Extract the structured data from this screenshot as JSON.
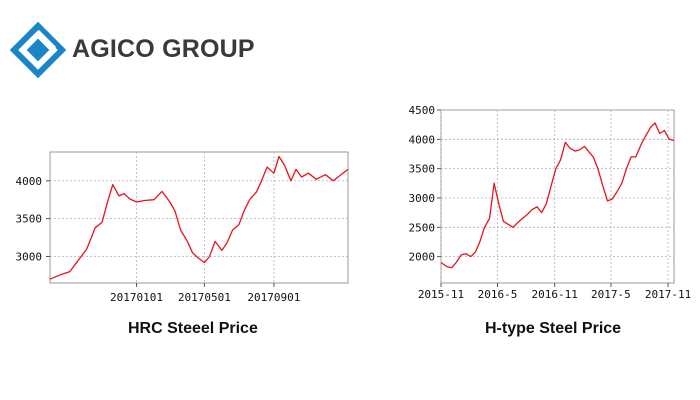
{
  "brand": {
    "name": "AGICO GROUP",
    "logo_icon": "agico-diamond-logo-icon",
    "color": "#1a86c8"
  },
  "chart_data": [
    {
      "type": "line",
      "title": "HRC Steeel Price",
      "xlabel": "",
      "ylabel": "",
      "x_ticks": [
        "20170101",
        "20170501",
        "20170901"
      ],
      "y_ticks": [
        3000,
        3500,
        4000
      ],
      "xlim": [
        "2016-08-01",
        "2018-01-10"
      ],
      "ylim": [
        2650,
        4380
      ],
      "grid": true,
      "series": [
        {
          "color": "#e8141c",
          "x": [
            "2016-08-01",
            "2016-08-20",
            "2016-09-05",
            "2016-09-20",
            "2016-10-05",
            "2016-10-20",
            "2016-11-01",
            "2016-11-10",
            "2016-11-20",
            "2016-12-01",
            "2016-12-10",
            "2016-12-20",
            "2017-01-01",
            "2017-01-15",
            "2017-02-01",
            "2017-02-15",
            "2017-03-01",
            "2017-03-10",
            "2017-03-20",
            "2017-04-01",
            "2017-04-10",
            "2017-04-20",
            "2017-05-01",
            "2017-05-10",
            "2017-05-20",
            "2017-06-01",
            "2017-06-10",
            "2017-06-20",
            "2017-07-01",
            "2017-07-10",
            "2017-07-20",
            "2017-08-01",
            "2017-08-10",
            "2017-08-20",
            "2017-09-01",
            "2017-09-10",
            "2017-09-20",
            "2017-10-01",
            "2017-10-10",
            "2017-10-20",
            "2017-11-01",
            "2017-11-15",
            "2017-12-01",
            "2017-12-15",
            "2018-01-01",
            "2018-01-10"
          ],
          "values": [
            2700,
            2760,
            2800,
            2950,
            3100,
            3380,
            3450,
            3700,
            3950,
            3800,
            3830,
            3760,
            3720,
            3740,
            3750,
            3860,
            3720,
            3600,
            3350,
            3200,
            3050,
            2980,
            2920,
            3000,
            3200,
            3080,
            3180,
            3350,
            3420,
            3600,
            3750,
            3850,
            4000,
            4180,
            4100,
            4320,
            4200,
            4000,
            4150,
            4050,
            4100,
            4020,
            4080,
            4000,
            4100,
            4150
          ]
        }
      ]
    },
    {
      "type": "line",
      "title": "H-type Steel Price",
      "xlabel": "",
      "ylabel": "",
      "x_ticks": [
        "2015-11",
        "2016-5",
        "2016-11",
        "2017-5",
        "2017-11"
      ],
      "y_ticks": [
        2000,
        2500,
        3000,
        3500,
        4000,
        4500
      ],
      "xlim": [
        "2015-11-01",
        "2017-11-20"
      ],
      "ylim": [
        1550,
        4500
      ],
      "grid": true,
      "series": [
        {
          "color": "#e8141c",
          "x": [
            "2015-11-01",
            "2015-11-20",
            "2015-12-05",
            "2015-12-20",
            "2016-01-05",
            "2016-01-20",
            "2016-02-05",
            "2016-02-20",
            "2016-03-05",
            "2016-03-20",
            "2016-04-05",
            "2016-04-20",
            "2016-05-05",
            "2016-05-20",
            "2016-06-05",
            "2016-06-20",
            "2016-07-05",
            "2016-07-20",
            "2016-08-05",
            "2016-08-20",
            "2016-09-05",
            "2016-09-20",
            "2016-10-05",
            "2016-10-20",
            "2016-11-05",
            "2016-11-20",
            "2016-12-05",
            "2016-12-20",
            "2017-01-05",
            "2017-01-20",
            "2017-02-05",
            "2017-02-20",
            "2017-03-05",
            "2017-03-20",
            "2017-04-05",
            "2017-04-20",
            "2017-05-05",
            "2017-05-20",
            "2017-06-05",
            "2017-06-20",
            "2017-07-05",
            "2017-07-20",
            "2017-08-05",
            "2017-08-20",
            "2017-09-05",
            "2017-09-20",
            "2017-10-05",
            "2017-10-20",
            "2017-11-05",
            "2017-11-20"
          ],
          "values": [
            1900,
            1830,
            1810,
            1900,
            2030,
            2050,
            2000,
            2080,
            2250,
            2500,
            2650,
            3250,
            2900,
            2600,
            2550,
            2500,
            2580,
            2650,
            2720,
            2800,
            2850,
            2750,
            2900,
            3200,
            3500,
            3650,
            3950,
            3850,
            3800,
            3820,
            3880,
            3780,
            3700,
            3500,
            3200,
            2950,
            2980,
            3100,
            3250,
            3500,
            3700,
            3700,
            3900,
            4050,
            4200,
            4280,
            4100,
            4150,
            4000,
            3980
          ]
        }
      ]
    }
  ]
}
